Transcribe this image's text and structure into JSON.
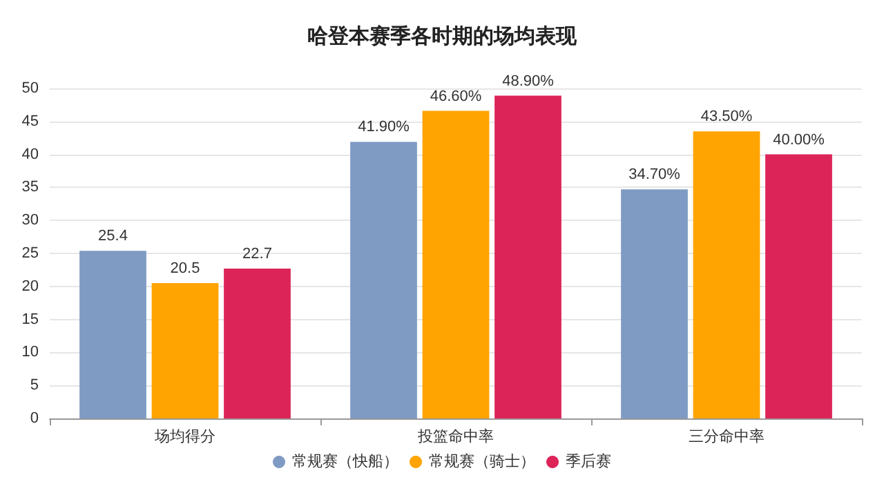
{
  "chart_data": {
    "type": "bar",
    "title": "哈登本赛季各时期的场均表现",
    "categories": [
      "场均得分",
      "投篮命中率",
      "三分命中率"
    ],
    "series": [
      {
        "name": "常规赛（快船）",
        "color": "#7f9bc4",
        "values": [
          25.4,
          41.9,
          34.7
        ],
        "value_labels": [
          "25.4",
          "41.90%",
          "34.70%"
        ]
      },
      {
        "name": "常规赛（骑士）",
        "color": "#ffa400",
        "values": [
          20.5,
          46.6,
          43.5
        ],
        "value_labels": [
          "20.5",
          "46.60%",
          "43.50%"
        ]
      },
      {
        "name": "季后赛",
        "color": "#dc2459",
        "values": [
          22.7,
          48.9,
          40.0
        ],
        "value_labels": [
          "22.7",
          "48.90%",
          "40.00%"
        ]
      }
    ],
    "ylim": [
      0,
      50
    ],
    "yticks": [
      0,
      5,
      10,
      15,
      20,
      25,
      30,
      35,
      40,
      45,
      50
    ],
    "grid": "y",
    "legend": "bottom"
  }
}
